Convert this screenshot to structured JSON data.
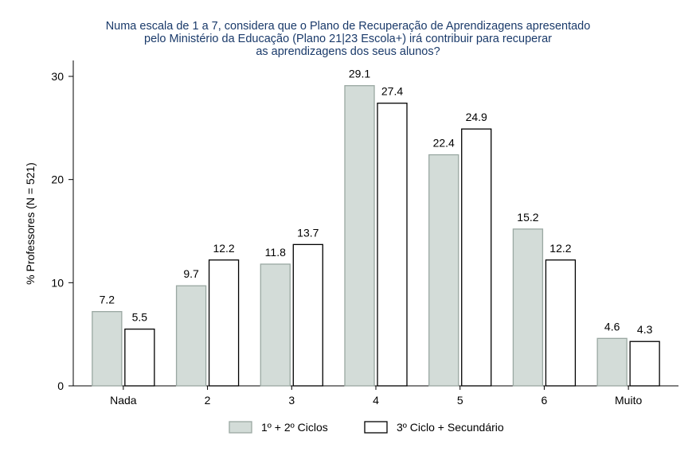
{
  "chart_data": {
    "type": "bar",
    "title": [
      "Numa escala de 1 a 7, considera que o Plano de Recuperação de Aprendizagens apresentado",
      "pelo Ministério da Educação (Plano 21|23 Escola+) irá contribuir para recuperar",
      "as aprendizagens dos seus alunos?"
    ],
    "xlabel": "",
    "ylabel": "% Professores (N = 521)",
    "categories": [
      "Nada",
      "2",
      "3",
      "4",
      "5",
      "6",
      "Muito"
    ],
    "series": [
      {
        "name": "1º + 2º Ciclos",
        "values": [
          7.2,
          9.7,
          11.8,
          29.1,
          22.4,
          15.2,
          4.6
        ],
        "color": "#d3dcd8",
        "stroke": "#9aa8a2"
      },
      {
        "name": "3º Ciclo + Secundário",
        "values": [
          5.5,
          12.2,
          13.7,
          27.4,
          24.9,
          12.2,
          4.3
        ],
        "color": "#ffffff",
        "stroke": "#000000"
      }
    ],
    "ylim": [
      0,
      30
    ],
    "yticks": [
      "0",
      "10",
      "20",
      "30"
    ],
    "legend_position": "bottom",
    "grid": false
  }
}
